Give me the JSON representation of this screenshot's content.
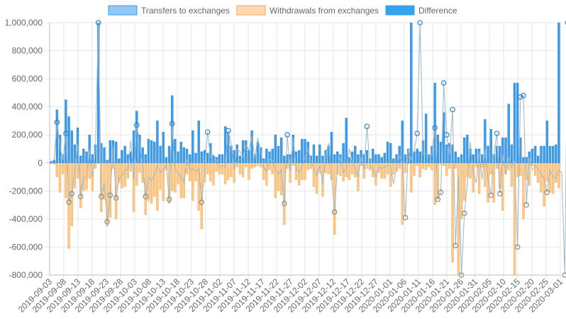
{
  "chart_data": {
    "type": "bar",
    "title": "",
    "xlabel": "",
    "ylabel": "",
    "ylim": [
      -800000,
      1000000
    ],
    "y_ticks": [
      1000000,
      800000,
      600000,
      400000,
      200000,
      0,
      -200000,
      -400000,
      -600000,
      -800000
    ],
    "y_tick_labels": [
      "1,000,000",
      "800,000",
      "600,000",
      "400,000",
      "200,000",
      "0",
      "-200,000",
      "-400,000",
      "-600,000",
      "-800,000"
    ],
    "x_range": [
      "2019-09-03",
      "2020-03-01"
    ],
    "x_tick_labels": [
      "2019-09-03",
      "2019-09-08",
      "2019-09-13",
      "2019-09-18",
      "2019-09-23",
      "2019-09-28",
      "2019-10-03",
      "2019-10-08",
      "2019-10-13",
      "2019-10-18",
      "2019-10-23",
      "2019-10-28",
      "2019-11-02",
      "2019-11-07",
      "2019-11-12",
      "2019-11-17",
      "2019-11-22",
      "2019-11-27",
      "2019-12-02",
      "2019-12-07",
      "2019-12-12",
      "2019-12-17",
      "2019-12-22",
      "2019-12-27",
      "2020-01-01",
      "2020-01-06",
      "2020-01-11",
      "2020-01-16",
      "2020-01-21",
      "2020-01-26",
      "2020-01-31",
      "2020-02-05",
      "2020-02-10",
      "2020-02-15",
      "2020-02-20",
      "2020-02-25",
      "2020-03-01"
    ],
    "grid": true,
    "legend_position": "top",
    "series": [
      {
        "name": "Transfers to exchanges",
        "kind": "bar",
        "color": "#3d9be9",
        "values": [
          10000,
          20000,
          380000,
          200000,
          60000,
          450000,
          330000,
          230000,
          130000,
          250000,
          50000,
          100000,
          80000,
          200000,
          60000,
          130000,
          1000000,
          140000,
          110000,
          20000,
          160000,
          160000,
          150000,
          30000,
          90000,
          120000,
          60000,
          80000,
          230000,
          370000,
          200000,
          110000,
          60000,
          170000,
          160000,
          150000,
          300000,
          120000,
          220000,
          40000,
          120000,
          480000,
          170000,
          80000,
          150000,
          110000,
          100000,
          60000,
          230000,
          70000,
          300000,
          80000,
          90000,
          70000,
          140000,
          50000,
          40000,
          60000,
          60000,
          260000,
          220000,
          120000,
          90000,
          130000,
          50000,
          160000,
          160000,
          90000,
          230000,
          60000,
          150000,
          110000,
          30000,
          100000,
          80000,
          100000,
          200000,
          120000,
          180000,
          50000,
          60000,
          60000,
          200000,
          80000,
          90000,
          170000,
          170000,
          150000,
          50000,
          130000,
          50000,
          130000,
          50000,
          90000,
          120000,
          220000,
          60000,
          80000,
          60000,
          140000,
          320000,
          40000,
          80000,
          120000,
          60000,
          90000,
          60000,
          90000,
          30000,
          100000,
          60000,
          60000,
          40000,
          70000,
          150000,
          140000,
          30000,
          60000,
          120000,
          300000,
          60000,
          100000,
          1000000,
          80000,
          100000,
          80000,
          160000,
          350000,
          60000,
          120000,
          570000,
          200000,
          150000,
          360000,
          130000,
          140000,
          130000,
          80000,
          40000,
          60000,
          180000,
          200000,
          100000,
          60000,
          100000,
          100000,
          60000,
          310000,
          120000,
          240000,
          60000,
          120000,
          120000,
          180000,
          180000,
          420000,
          130000,
          570000,
          570000,
          180000,
          40000,
          40000,
          80000,
          100000,
          120000,
          50000,
          120000,
          120000,
          300000,
          120000,
          120000,
          130000,
          1000000
        ],
        "curve_values": [
          10000,
          20000,
          290000,
          120000,
          20000,
          210000,
          -280000,
          -220000,
          -50000,
          140000,
          -240000,
          -100000,
          -110000,
          100000,
          -100000,
          90000,
          1000000,
          -240000,
          -150000,
          -420000,
          -230000,
          120000,
          -250000,
          -110000,
          -90000,
          -50000,
          -50000,
          160000,
          -120000,
          270000,
          130000,
          -30000,
          -240000,
          -100000,
          -130000,
          -90000,
          -20000,
          -70000,
          -50000,
          -10000,
          -260000,
          280000,
          -40000,
          -70000,
          -100000,
          -140000,
          30000,
          -50000,
          -40000,
          -60000,
          -40000,
          -280000,
          -50000,
          220000,
          40000,
          60000,
          20000,
          -30000,
          -20000,
          -30000,
          230000,
          140000,
          -50000,
          100000,
          80000,
          40000,
          130000,
          90000,
          190000,
          30000,
          180000,
          80000,
          -30000,
          -60000,
          30000,
          20000,
          -50000,
          -80000,
          -50000,
          -290000,
          200000,
          -60000,
          180000,
          -40000,
          -70000,
          -30000,
          40000,
          100000,
          10000,
          -40000,
          -90000,
          -20000,
          -150000,
          60000,
          140000,
          -100000,
          -350000,
          -30000,
          40000,
          -70000,
          -40000,
          100000,
          10000,
          -40000,
          -100000,
          40000,
          -50000,
          260000,
          -20000,
          -40000,
          -100000,
          -30000,
          -40000,
          -30000,
          -20000,
          -20000,
          -150000,
          -30000,
          50000,
          -10000,
          -390000,
          100000,
          20000,
          90000,
          210000,
          1000000,
          60000,
          70000,
          50000,
          60000,
          250000,
          -260000,
          -210000,
          570000,
          200000,
          60000,
          380000,
          -590000,
          -100000,
          -800000,
          -360000,
          -150000,
          150000,
          -70000,
          -140000,
          80000,
          -120000,
          100000,
          -120000,
          -230000,
          60000,
          210000,
          -220000,
          60000,
          -80000,
          40000,
          -30000,
          10000,
          -600000,
          470000,
          480000,
          -300000,
          40000,
          -50000,
          -20000,
          -40000,
          -80000,
          -110000,
          -210000,
          -50000,
          -100000,
          -110000,
          -50000,
          -70000,
          -800000,
          1000000
        ]
      },
      {
        "name": "Withdrawals from exchanges",
        "kind": "bar",
        "color": "#f4a848",
        "values": [
          -5000,
          -10000,
          -100000,
          -210000,
          -80000,
          -250000,
          -610000,
          -450000,
          -180000,
          -110000,
          -320000,
          -200000,
          -190000,
          -110000,
          -200000,
          -40000,
          -5000,
          -350000,
          -260000,
          -450000,
          -390000,
          -40000,
          -400000,
          -140000,
          -180000,
          -170000,
          -110000,
          -60000,
          -350000,
          -160000,
          -70000,
          -140000,
          -370000,
          -270000,
          -290000,
          -240000,
          -340000,
          -190000,
          -270000,
          -50000,
          -290000,
          -200000,
          -210000,
          -150000,
          -250000,
          -250000,
          -80000,
          -130000,
          -270000,
          -130000,
          -340000,
          -470000,
          -140000,
          -80000,
          -130000,
          -160000,
          -60000,
          -80000,
          -80000,
          -150000,
          -120000,
          -100000,
          -140000,
          -30000,
          -80000,
          -100000,
          -30000,
          -120000,
          -40000,
          -30000,
          -20000,
          -30000,
          -120000,
          -160000,
          -50000,
          -80000,
          -250000,
          -200000,
          -230000,
          -440000,
          -40000,
          -140000,
          -20000,
          -120000,
          -160000,
          -120000,
          -120000,
          -50000,
          -40000,
          -170000,
          -220000,
          -70000,
          -240000,
          -70000,
          -80000,
          -120000,
          -510000,
          -80000,
          -90000,
          -130000,
          -100000,
          -120000,
          -80000,
          -100000,
          -200000,
          -20000,
          -110000,
          -40000,
          -50000,
          -100000,
          -160000,
          -70000,
          -110000,
          -110000,
          -80000,
          -170000,
          -80000,
          -60000,
          -40000,
          -440000,
          -70000,
          -10000,
          -210000,
          -90000,
          -20000,
          -100000,
          -40000,
          -50000,
          -30000,
          -50000,
          -300000,
          -260000,
          -10000,
          -20000,
          -90000,
          -40000,
          -710000,
          -40000,
          -810000,
          -400000,
          -270000,
          -100000,
          -110000,
          -210000,
          -30000,
          -220000,
          -30000,
          -170000,
          -280000,
          -80000,
          -280000,
          -40000,
          -180000,
          -340000,
          -80000,
          -50000,
          -170000,
          -800000,
          -100000,
          -90000,
          -400000,
          -120000,
          -160000,
          -20000,
          -90000,
          -140000,
          -210000,
          -310000,
          -130000,
          -210000,
          -220000,
          -140000,
          -180000,
          -800000,
          -730000
        ]
      },
      {
        "name": "Difference",
        "kind": "legend-only",
        "color": "#36a2eb"
      }
    ]
  }
}
